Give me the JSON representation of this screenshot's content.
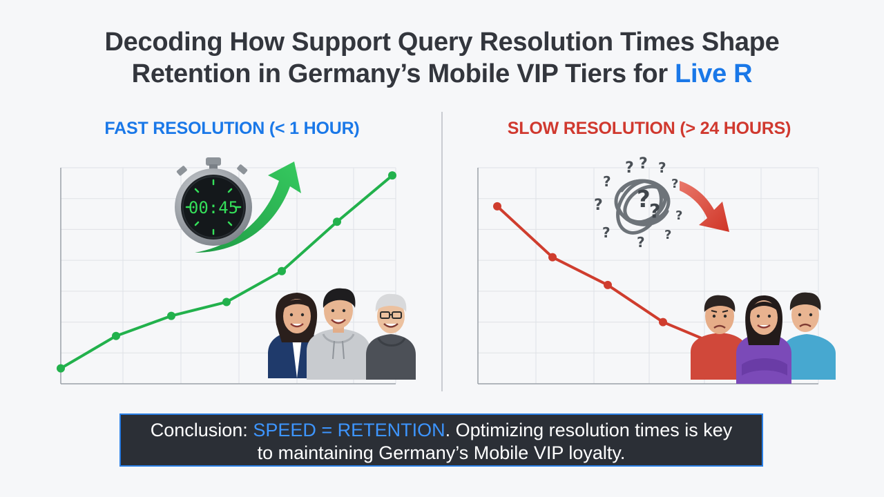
{
  "title": {
    "line1": "Decoding How Support Query Resolution Times Shape",
    "line2_prefix": "Retention in Germany’s Mobile VIP Tiers for ",
    "line2_accent": "Live R"
  },
  "panels": {
    "fast": {
      "heading": "FAST RESOLUTION (< 1 HOUR)",
      "timer": "00:45"
    },
    "slow": {
      "heading": "SLOW RESOLUTION (> 24 HOURS)"
    }
  },
  "chart_data": [
    {
      "type": "line",
      "title": "FAST RESOLUTION (< 1 HOUR)",
      "xlabel": "",
      "ylabel": "",
      "x": [
        0,
        1,
        2,
        3,
        4,
        5,
        6
      ],
      "values": [
        0.5,
        1.55,
        2.2,
        2.65,
        3.65,
        5.25,
        6.75
      ],
      "ylim": [
        0,
        7
      ],
      "grid": true,
      "color": "#22b14c"
    },
    {
      "type": "line",
      "title": "SLOW RESOLUTION (> 24 HOURS)",
      "xlabel": "",
      "ylabel": "",
      "x": [
        0,
        1,
        2,
        3,
        4
      ],
      "values": [
        5.75,
        4.1,
        3.2,
        2.0,
        1.25
      ],
      "ylim": [
        0,
        7
      ],
      "grid": true,
      "color": "#cf3d2e"
    }
  ],
  "conclusion": {
    "prefix": "Conclusion: ",
    "highlight": "SPEED = RETENTION",
    "rest_line1": ". Optimizing resolution times is key",
    "line2": "to maintaining Germany’s Mobile VIP loyalty."
  },
  "colors": {
    "accent_blue": "#1a78e8",
    "green": "#22b14c",
    "red": "#cf3d2e",
    "banner_bg": "#2b2f36"
  }
}
